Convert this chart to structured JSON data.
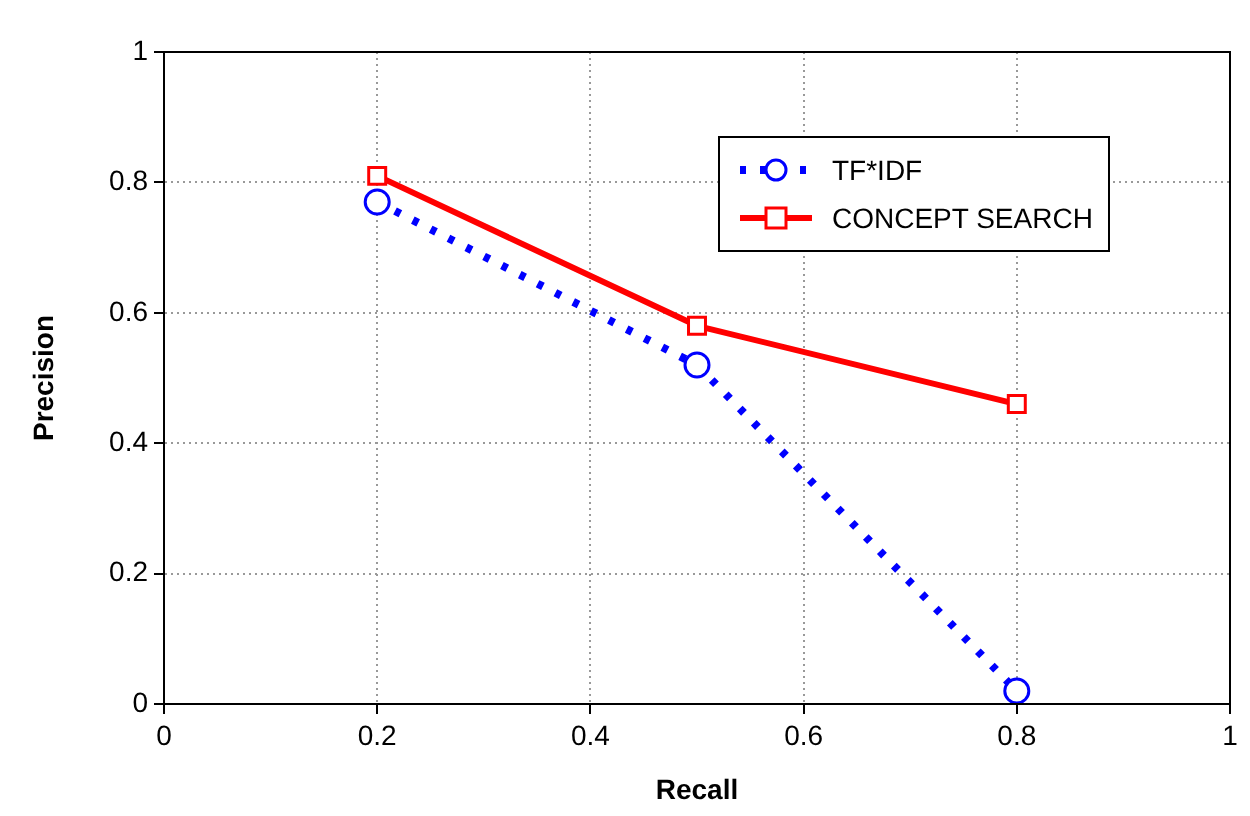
{
  "chart_data": {
    "type": "line",
    "xlabel": "Recall",
    "ylabel": "Precision",
    "xlim": [
      0,
      1
    ],
    "xticks": [
      0,
      0.2,
      0.4,
      0.6,
      0.8,
      1
    ],
    "ylim": [
      0,
      1
    ],
    "yticks": [
      0,
      0.2,
      0.4,
      0.6,
      0.8,
      1
    ],
    "grid": true,
    "legend": "top right",
    "series": [
      {
        "name": "TF*IDF",
        "color": "#0000ff",
        "x": [
          0.2,
          0.5,
          0.8
        ],
        "values": [
          0.77,
          0.52,
          0.02
        ],
        "marker": "circle",
        "line_style": "dotted"
      },
      {
        "name": "CONCEPT SEARCH",
        "color": "#ff0000",
        "x": [
          0.2,
          0.5,
          0.8
        ],
        "values": [
          0.81,
          0.58,
          0.46
        ],
        "marker": "square",
        "line_style": "solid"
      }
    ]
  }
}
